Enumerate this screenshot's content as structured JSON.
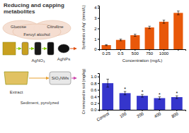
{
  "chart_data": [
    {
      "type": "bar",
      "title": "Reducing and capping\nmetabolites",
      "annotations": [
        "Glucose",
        "Feruyl alcohol",
        "Citrulline",
        "AgNO₃",
        "AgNPs",
        "Extract",
        "Sediment, pyrolyzed",
        "SiO₂NMs"
      ],
      "categories": [
        "0.25",
        "0.5",
        "500",
        "750",
        "1000",
        null
      ],
      "values": [
        0.4,
        0.9,
        1.35,
        2.1,
        2.65,
        3.5
      ],
      "errors": [
        0.05,
        0.08,
        0.1,
        0.12,
        0.15,
        0.18
      ],
      "color": "#e8580a",
      "xlabel": "Concentration (mg/L)",
      "ylabel": "Synthesis of Ag⁺ (mmol/L)",
      "ylim": [
        0,
        4.2
      ],
      "yticks": [
        0,
        1,
        2,
        3,
        4
      ]
    },
    {
      "type": "bar",
      "categories": [
        "Control",
        "100",
        "200",
        "400",
        "800"
      ],
      "values": [
        0.8,
        0.5,
        0.42,
        0.35,
        0.38
      ],
      "errors": [
        0.12,
        0.05,
        0.04,
        0.04,
        0.04
      ],
      "annotations": [
        null,
        "*",
        "*",
        "*",
        "*"
      ],
      "color": "#3535cc",
      "ylabel": "Cr removed in soil (mg/kg)",
      "ylim": [
        0,
        1.1
      ],
      "yticks": [
        {
          "value": 0,
          "label": "0.0"
        },
        0.2,
        0.4,
        0.6,
        0.8,
        {
          "value": 1,
          "label": "1.0"
        }
      ]
    }
  ]
}
